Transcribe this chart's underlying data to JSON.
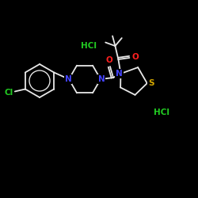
{
  "bg_color": "#000000",
  "bond_color": "#e8e8e8",
  "atom_colors": {
    "O": "#ff2020",
    "N": "#4444ff",
    "S": "#d4a800",
    "Cl": "#22cc22",
    "HCl": "#22cc22",
    "C": "#e8e8e8"
  },
  "bond_width": 1.3,
  "figsize": [
    2.5,
    2.5
  ],
  "dpi": 100,
  "hcl1": [
    204,
    108
  ],
  "hcl2": [
    112,
    192
  ],
  "hcl_fontsize": 7.5
}
